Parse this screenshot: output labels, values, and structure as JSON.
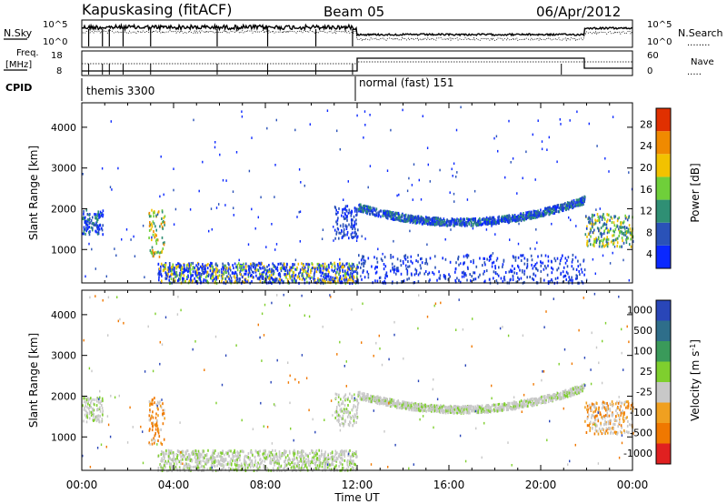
{
  "header": {
    "station": "Kapuskasing (fitACF)",
    "beam": "Beam 05",
    "date": "06/Apr/2012"
  },
  "strip": {
    "nsky_label": "N.Sky",
    "nsearch_label": "N.Search",
    "nsearch_marker": "........",
    "noise_ticks_left": [
      "10^5",
      "10^0"
    ],
    "noise_ticks_right": [
      "10^5",
      "10^0"
    ],
    "freq_label": "Freq.",
    "freq_unit": "[MHz]",
    "freq_ticks": [
      "18",
      "8"
    ],
    "nave_label": "Nave",
    "nave_marker": ".....",
    "nave_ticks": [
      "60",
      "0"
    ],
    "cpid_label": "CPID",
    "cpid_segments": [
      "themis 3300",
      "normal (fast) 151"
    ]
  },
  "colorbars": {
    "power": {
      "label": "Power [dB]",
      "ticks": [
        "4",
        "8",
        "12",
        "16",
        "20",
        "24",
        "28"
      ],
      "colors": [
        "#0a28ff",
        "#2a52b8",
        "#2f8f74",
        "#6fcf3a",
        "#f2c200",
        "#f08a00",
        "#e03000"
      ]
    },
    "velocity": {
      "label": "Velocity [m s-1]",
      "label_parts": [
        "Velocity [m s",
        "-1",
        "]"
      ],
      "ticks": [
        "1000",
        "500",
        "100",
        "25",
        "-25",
        "-100",
        "-500",
        "-1000"
      ],
      "colors": [
        "#2946b8",
        "#2e6e8a",
        "#3a9a5a",
        "#7fcf2e",
        "#c8c8c8",
        "#f0a020",
        "#f07800",
        "#e02020"
      ]
    }
  },
  "axes": {
    "ylabel": "Slant Range [km]",
    "xlabel": "Time UT"
  },
  "chart_data": [
    {
      "type": "heatmap",
      "name": "power-panel",
      "xlabel": "Time UT",
      "ylabel": "Slant Range [km]",
      "xlim": [
        0,
        24
      ],
      "ylim": [
        180,
        4600
      ],
      "xticks": [
        "00:00",
        "04:00",
        "08:00",
        "12:00",
        "16:00",
        "20:00",
        "00:00"
      ],
      "yticks": [
        1000,
        2000,
        3000,
        4000
      ],
      "colorbar": "Power [dB]",
      "features": [
        {
          "t": [
            0.0,
            0.9
          ],
          "range": [
            1400,
            2000
          ],
          "level": "8-12"
        },
        {
          "t": [
            2.9,
            3.6
          ],
          "range": [
            800,
            2000
          ],
          "level": "12-20"
        },
        {
          "t": [
            3.3,
            12.0
          ],
          "range": [
            200,
            700
          ],
          "level": "4-16"
        },
        {
          "t": [
            11.0,
            12.0
          ],
          "range": [
            1300,
            2100
          ],
          "level": "4-8"
        },
        {
          "t": [
            12.0,
            21.9
          ],
          "range": [
            1600,
            2300
          ],
          "level": "4-12",
          "shape": "arc"
        },
        {
          "t": [
            12.0,
            21.9
          ],
          "range": [
            200,
            900
          ],
          "level": "4-8",
          "sparse": true
        },
        {
          "t": [
            21.9,
            24.0
          ],
          "range": [
            1100,
            1900
          ],
          "level": "8-20"
        }
      ]
    },
    {
      "type": "heatmap",
      "name": "velocity-panel",
      "xlabel": "Time UT",
      "ylabel": "Slant Range [km]",
      "xlim": [
        0,
        24
      ],
      "ylim": [
        180,
        4600
      ],
      "xticks": [
        "00:00",
        "04:00",
        "08:00",
        "12:00",
        "16:00",
        "20:00",
        "00:00"
      ],
      "yticks": [
        1000,
        2000,
        3000,
        4000
      ],
      "colorbar": "Velocity [m s-1]",
      "features": [
        {
          "t": [
            0.0,
            0.9
          ],
          "range": [
            1400,
            2000
          ],
          "level": "-25 to 25"
        },
        {
          "t": [
            2.9,
            3.6
          ],
          "range": [
            800,
            2000
          ],
          "level": "-500 to -100"
        },
        {
          "t": [
            3.3,
            12.0
          ],
          "range": [
            200,
            700
          ],
          "level": "-25 to 25"
        },
        {
          "t": [
            11.0,
            12.0
          ],
          "range": [
            1300,
            2100
          ],
          "level": "-25 to 25"
        },
        {
          "t": [
            12.0,
            21.9
          ],
          "range": [
            1600,
            2300
          ],
          "level": "-25 to 25",
          "shape": "arc"
        },
        {
          "t": [
            21.9,
            24.0
          ],
          "range": [
            1100,
            1900
          ],
          "level": "-100 to 25"
        }
      ]
    }
  ]
}
